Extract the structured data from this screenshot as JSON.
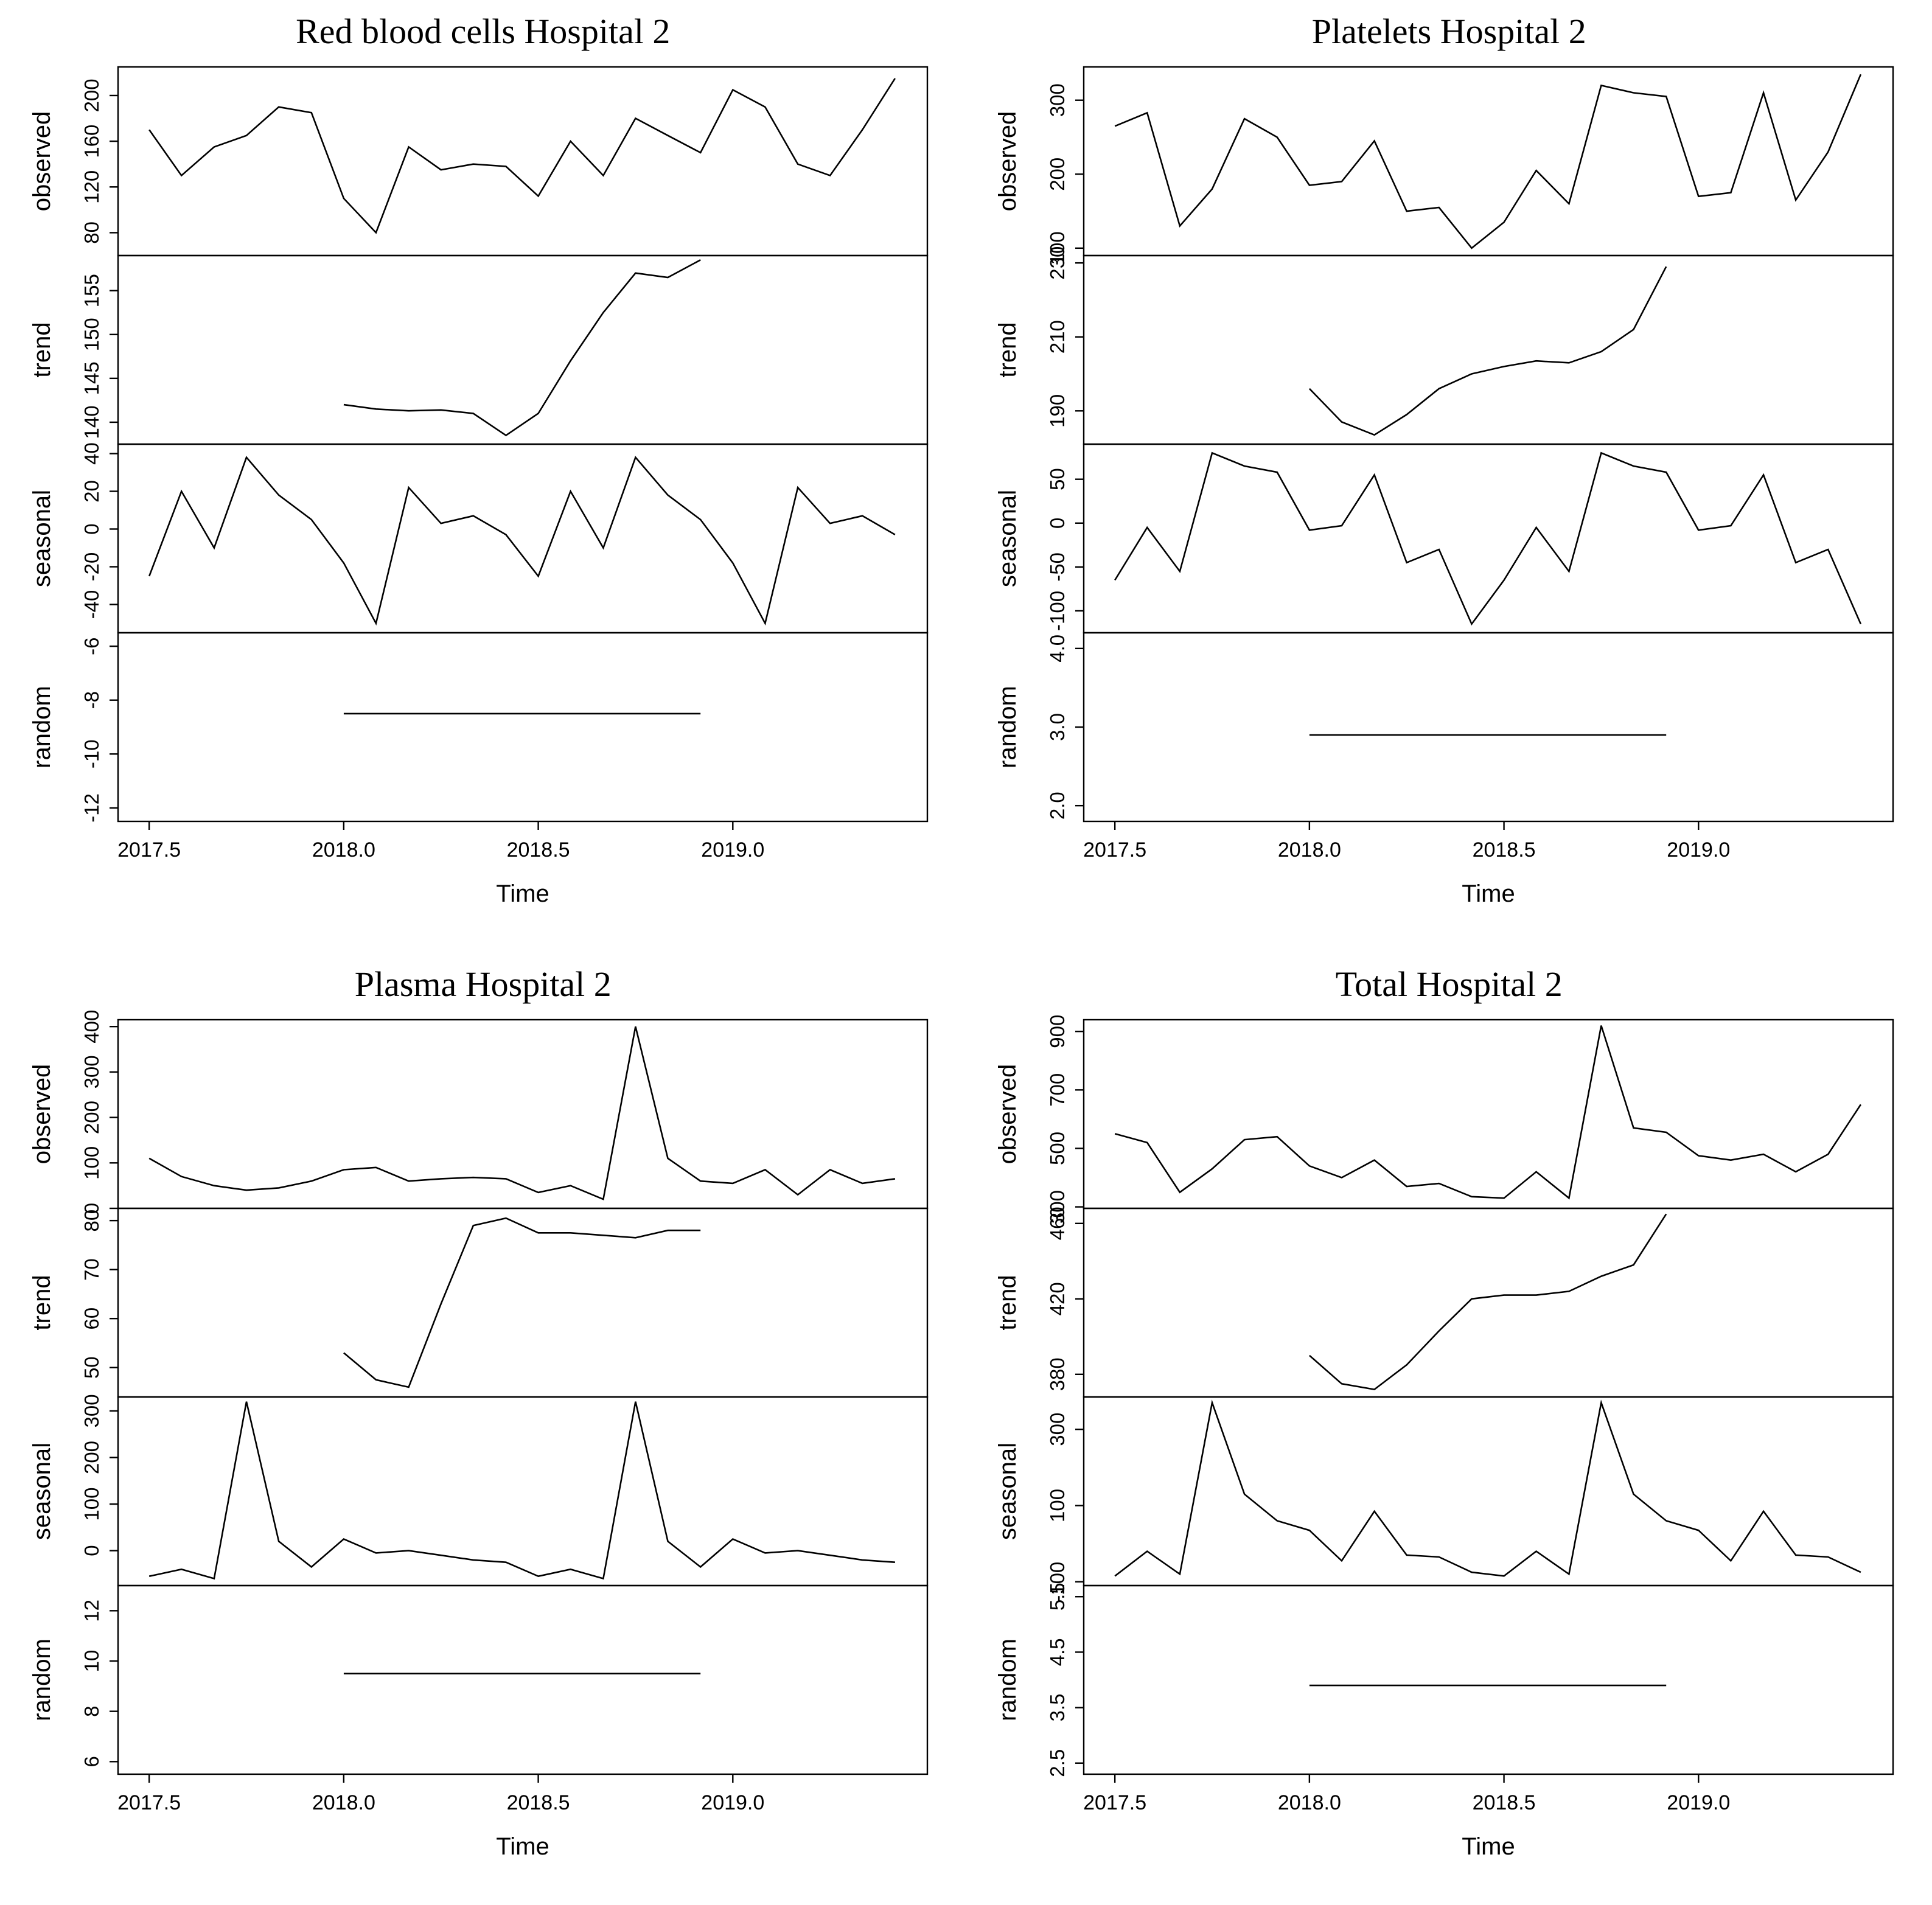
{
  "page": {
    "background": "#ffffff",
    "line_color": "#000000"
  },
  "chart_data": [
    {
      "type": "line",
      "title": "Red blood cells Hospital 2",
      "xlabel": "Time",
      "xlim": [
        2017.42,
        2019.5
      ],
      "xticks": [
        2017.5,
        2018.0,
        2018.5,
        2019.0
      ],
      "xtick_labels": [
        "2017.5",
        "2018.0",
        "2018.5",
        "2019.0"
      ],
      "x": [
        2017.5,
        2017.583,
        2017.667,
        2017.75,
        2017.833,
        2017.917,
        2018.0,
        2018.083,
        2018.167,
        2018.25,
        2018.333,
        2018.417,
        2018.5,
        2018.583,
        2018.667,
        2018.75,
        2018.833,
        2018.917,
        2019.0,
        2019.083,
        2019.167,
        2019.25,
        2019.333,
        2019.417
      ],
      "panels": [
        {
          "label": "observed",
          "ylim": [
            60,
            225
          ],
          "yticks": [
            80,
            120,
            160,
            200
          ],
          "ytick_labels": [
            "80",
            "120",
            "160",
            "200"
          ],
          "values": [
            170,
            130,
            155,
            165,
            190,
            185,
            110,
            80,
            155,
            135,
            140,
            138,
            112,
            160,
            130,
            180,
            165,
            150,
            205,
            190,
            140,
            130,
            170,
            215
          ]
        },
        {
          "label": "trend",
          "ylim": [
            137.5,
            159
          ],
          "yticks": [
            140,
            145,
            150,
            155
          ],
          "ytick_labels": [
            "140",
            "145",
            "150",
            "155"
          ],
          "x_start_index": 6,
          "values": [
            142,
            141.5,
            141.3,
            141.4,
            141,
            138.5,
            141,
            147,
            152.5,
            157,
            156.5,
            158.5
          ]
        },
        {
          "label": "seasonal",
          "ylim": [
            -55,
            45
          ],
          "yticks": [
            -40,
            -20,
            0,
            20,
            40
          ],
          "ytick_labels": [
            "-40",
            "-20",
            "0",
            "20",
            "40"
          ],
          "values": [
            -25,
            20,
            -10,
            38,
            18,
            5,
            -18,
            -50,
            22,
            3,
            7,
            -3,
            -25,
            20,
            -10,
            38,
            18,
            5,
            -18,
            -50,
            22,
            3,
            7,
            -3
          ]
        },
        {
          "label": "random",
          "ylim": [
            -12.5,
            -5.5
          ],
          "yticks": [
            -12,
            -10,
            -8,
            -6
          ],
          "ytick_labels": [
            "-12",
            "-10",
            "-8",
            "-6"
          ],
          "x_start_index": 6,
          "values": [
            -8.5,
            -8.5,
            -8.5,
            -8.5,
            -8.5,
            -8.5,
            -8.5,
            -8.5,
            -8.5,
            -8.5,
            -8.5,
            -8.5
          ]
        }
      ]
    },
    {
      "type": "line",
      "title": "Platelets Hospital 2",
      "xlabel": "Time",
      "xlim": [
        2017.42,
        2019.5
      ],
      "xticks": [
        2017.5,
        2018.0,
        2018.5,
        2019.0
      ],
      "xtick_labels": [
        "2017.5",
        "2018.0",
        "2018.5",
        "2019.0"
      ],
      "x": [
        2017.5,
        2017.583,
        2017.667,
        2017.75,
        2017.833,
        2017.917,
        2018.0,
        2018.083,
        2018.167,
        2018.25,
        2018.333,
        2018.417,
        2018.5,
        2018.583,
        2018.667,
        2018.75,
        2018.833,
        2018.917,
        2019.0,
        2019.083,
        2019.167,
        2019.25,
        2019.333,
        2019.417
      ],
      "panels": [
        {
          "label": "observed",
          "ylim": [
            90,
            345
          ],
          "yticks": [
            100,
            200,
            300
          ],
          "ytick_labels": [
            "100",
            "200",
            "300"
          ],
          "values": [
            265,
            283,
            130,
            180,
            275,
            250,
            185,
            190,
            245,
            150,
            155,
            100,
            135,
            205,
            160,
            320,
            310,
            305,
            170,
            175,
            310,
            165,
            230,
            335
          ]
        },
        {
          "label": "trend",
          "ylim": [
            181,
            232
          ],
          "yticks": [
            190,
            210,
            230
          ],
          "ytick_labels": [
            "190",
            "210",
            "230"
          ],
          "x_start_index": 6,
          "values": [
            196,
            187,
            183.5,
            189,
            196,
            200,
            202,
            203.5,
            203,
            206,
            212,
            229
          ]
        },
        {
          "label": "seasonal",
          "ylim": [
            -125,
            90
          ],
          "yticks": [
            -100,
            -50,
            0,
            50
          ],
          "ytick_labels": [
            "-100",
            "-50",
            "0",
            "50"
          ],
          "values": [
            -65,
            -5,
            -55,
            80,
            65,
            58,
            -8,
            -3,
            55,
            -45,
            -30,
            -115,
            -65,
            -5,
            -55,
            80,
            65,
            58,
            -8,
            -3,
            55,
            -45,
            -30,
            -115
          ]
        },
        {
          "label": "random",
          "ylim": [
            1.8,
            4.2
          ],
          "yticks": [
            2.0,
            3.0,
            4.0
          ],
          "ytick_labels": [
            "2.0",
            "3.0",
            "4.0"
          ],
          "x_start_index": 6,
          "values": [
            2.9,
            2.9,
            2.9,
            2.9,
            2.9,
            2.9,
            2.9,
            2.9,
            2.9,
            2.9,
            2.9,
            2.9
          ]
        }
      ]
    },
    {
      "type": "line",
      "title": "Plasma Hospital 2",
      "xlabel": "Time",
      "xlim": [
        2017.42,
        2019.5
      ],
      "xticks": [
        2017.5,
        2018.0,
        2018.5,
        2019.0
      ],
      "xtick_labels": [
        "2017.5",
        "2018.0",
        "2018.5",
        "2019.0"
      ],
      "x": [
        2017.5,
        2017.583,
        2017.667,
        2017.75,
        2017.833,
        2017.917,
        2018.0,
        2018.083,
        2018.167,
        2018.25,
        2018.333,
        2018.417,
        2018.5,
        2018.583,
        2018.667,
        2018.75,
        2018.833,
        2018.917,
        2019.0,
        2019.083,
        2019.167,
        2019.25,
        2019.333,
        2019.417
      ],
      "panels": [
        {
          "label": "observed",
          "ylim": [
            0,
            415
          ],
          "yticks": [
            0,
            100,
            200,
            300,
            400
          ],
          "ytick_labels": [
            "0",
            "100",
            "200",
            "300",
            "400"
          ],
          "values": [
            110,
            70,
            50,
            40,
            45,
            60,
            85,
            90,
            60,
            65,
            68,
            65,
            35,
            50,
            20,
            400,
            110,
            60,
            55,
            85,
            30,
            85,
            55,
            65
          ]
        },
        {
          "label": "trend",
          "ylim": [
            44,
            82.5
          ],
          "yticks": [
            50,
            60,
            70,
            80
          ],
          "ytick_labels": [
            "50",
            "60",
            "70",
            "80"
          ],
          "x_start_index": 6,
          "values": [
            53,
            47.5,
            46,
            63,
            79,
            80.5,
            77.5,
            77.5,
            77,
            76.5,
            78,
            78
          ]
        },
        {
          "label": "seasonal",
          "ylim": [
            -75,
            330
          ],
          "yticks": [
            0,
            100,
            200,
            300
          ],
          "ytick_labels": [
            "0",
            "100",
            "200",
            "300"
          ],
          "values": [
            -55,
            -40,
            -60,
            320,
            20,
            -35,
            25,
            -5,
            0,
            -10,
            -20,
            -25,
            -55,
            -40,
            -60,
            320,
            20,
            -35,
            25,
            -5,
            0,
            -10,
            -20,
            -25
          ]
        },
        {
          "label": "random",
          "ylim": [
            5.5,
            13
          ],
          "yticks": [
            6,
            8,
            10,
            12
          ],
          "ytick_labels": [
            "6",
            "8",
            "10",
            "12"
          ],
          "x_start_index": 6,
          "values": [
            9.5,
            9.5,
            9.5,
            9.5,
            9.5,
            9.5,
            9.5,
            9.5,
            9.5,
            9.5,
            9.5,
            9.5
          ]
        }
      ]
    },
    {
      "type": "line",
      "title": "Total Hospital 2",
      "xlabel": "Time",
      "xlim": [
        2017.42,
        2019.5
      ],
      "xticks": [
        2017.5,
        2018.0,
        2018.5,
        2019.0
      ],
      "xtick_labels": [
        "2017.5",
        "2018.0",
        "2018.5",
        "2019.0"
      ],
      "x": [
        2017.5,
        2017.583,
        2017.667,
        2017.75,
        2017.833,
        2017.917,
        2018.0,
        2018.083,
        2018.167,
        2018.25,
        2018.333,
        2018.417,
        2018.5,
        2018.583,
        2018.667,
        2018.75,
        2018.833,
        2018.917,
        2019.0,
        2019.083,
        2019.167,
        2019.25,
        2019.333,
        2019.417
      ],
      "panels": [
        {
          "label": "observed",
          "ylim": [
            295,
            940
          ],
          "yticks": [
            300,
            500,
            700,
            900
          ],
          "ytick_labels": [
            "300",
            "500",
            "700",
            "900"
          ],
          "values": [
            550,
            520,
            350,
            430,
            530,
            540,
            440,
            400,
            460,
            370,
            380,
            335,
            330,
            420,
            330,
            920,
            570,
            555,
            475,
            460,
            480,
            420,
            480,
            650
          ]
        },
        {
          "label": "trend",
          "ylim": [
            368,
            468
          ],
          "yticks": [
            380,
            420,
            460
          ],
          "ytick_labels": [
            "380",
            "420",
            "460"
          ],
          "x_start_index": 6,
          "values": [
            390,
            375,
            372,
            385,
            403,
            420,
            422,
            422,
            424,
            432,
            438,
            465
          ]
        },
        {
          "label": "seasonal",
          "ylim": [
            -110,
            385
          ],
          "yticks": [
            -100,
            100,
            300
          ],
          "ytick_labels": [
            "-100",
            "100",
            "300"
          ],
          "values": [
            -85,
            -20,
            -80,
            370,
            130,
            60,
            35,
            -45,
            85,
            -30,
            -35,
            -75,
            -85,
            -20,
            -80,
            370,
            130,
            60,
            35,
            -45,
            85,
            -30,
            -35,
            -75
          ]
        },
        {
          "label": "random",
          "ylim": [
            2.3,
            5.7
          ],
          "yticks": [
            2.5,
            3.5,
            4.5,
            5.5
          ],
          "ytick_labels": [
            "2.5",
            "3.5",
            "4.5",
            "5.5"
          ],
          "x_start_index": 6,
          "values": [
            3.9,
            3.9,
            3.9,
            3.9,
            3.9,
            3.9,
            3.9,
            3.9,
            3.9,
            3.9,
            3.9,
            3.9
          ]
        }
      ]
    }
  ]
}
